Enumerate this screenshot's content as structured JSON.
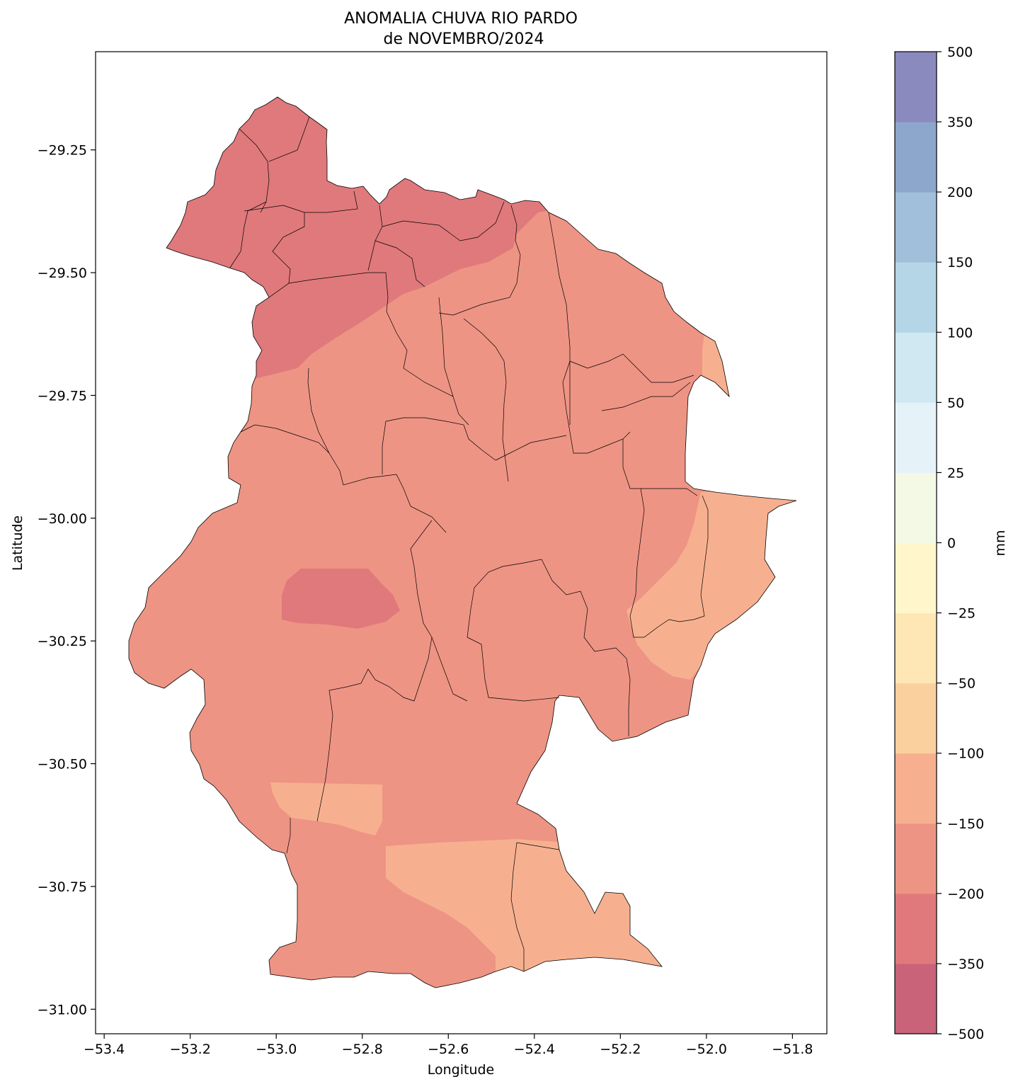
{
  "chart_data": {
    "type": "heatmap",
    "title_line1": "ANOMALIA CHUVA RIO PARDO",
    "title_line2": "de NOVEMBRO/2024",
    "xlabel": "Longitude",
    "ylabel": "Latitude",
    "xlim": [
      -53.42,
      -51.72
    ],
    "ylim": [
      -31.05,
      -29.05
    ],
    "x_ticks": [
      {
        "value": -53.4,
        "label": "−53.4"
      },
      {
        "value": -53.2,
        "label": "−53.2"
      },
      {
        "value": -53.0,
        "label": "−53.0"
      },
      {
        "value": -52.8,
        "label": "−52.8"
      },
      {
        "value": -52.6,
        "label": "−52.6"
      },
      {
        "value": -52.4,
        "label": "−52.4"
      },
      {
        "value": -52.2,
        "label": "−52.2"
      },
      {
        "value": -52.0,
        "label": "−52.0"
      },
      {
        "value": -51.8,
        "label": "−51.8"
      }
    ],
    "y_ticks": [
      {
        "value": -29.25,
        "label": "−29.25"
      },
      {
        "value": -29.5,
        "label": "−29.50"
      },
      {
        "value": -29.75,
        "label": "−29.75"
      },
      {
        "value": -30.0,
        "label": "−30.00"
      },
      {
        "value": -30.25,
        "label": "−30.25"
      },
      {
        "value": -30.5,
        "label": "−30.50"
      },
      {
        "value": -30.75,
        "label": "−30.75"
      },
      {
        "value": -31.0,
        "label": "−31.00"
      }
    ],
    "colorbar": {
      "label": "mm",
      "levels": [
        "−500",
        "−350",
        "−200",
        "−150",
        "−100",
        "−50",
        "−25",
        "0",
        "25",
        "50",
        "100",
        "150",
        "200",
        "350",
        "500"
      ],
      "colors": [
        "#c8637a",
        "#e0797c",
        "#ee9484",
        "#f7b08f",
        "#fbd09f",
        "#fee6b5",
        "#fff7cb",
        "#f4f9e6",
        "#e5f3f8",
        "#cfe8f1",
        "#b4d6e6",
        "#a1bfda",
        "#8da7cc",
        "#8a8abf"
      ]
    },
    "bin_colors": {
      "-350 to -200": "#e0797c",
      "-200 to -150": "#ee9484",
      "-150 to -100": "#f7b08f"
    },
    "regions": [
      {
        "bin": "-200 to -150",
        "description": "most of the basin"
      },
      {
        "bin": "-350 to -200",
        "description": "northern municipalities"
      },
      {
        "bin": "-350 to -200",
        "description": "central-west patch near -52.9, -30.15"
      },
      {
        "bin": "-150 to -100",
        "description": "eastern lobe near -52.0, -30.1"
      },
      {
        "bin": "-150 to -100",
        "description": "far north-east tip near -51.98, -29.7"
      },
      {
        "bin": "-150 to -100",
        "description": "south-west patch near -52.85, -30.6"
      },
      {
        "bin": "-150 to -100",
        "description": "southern lobe near -52.45, -30.8"
      }
    ]
  }
}
